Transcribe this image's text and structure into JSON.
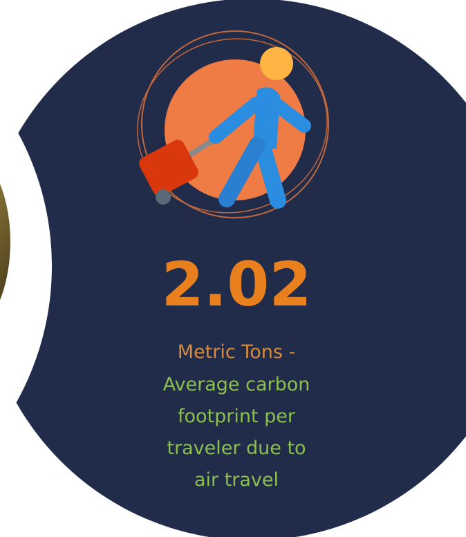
{
  "stat": {
    "value": "2.02",
    "unit": "Metric Tons -",
    "description": [
      "Average carbon",
      "footprint per",
      "traveler due to",
      "air travel"
    ]
  }
}
